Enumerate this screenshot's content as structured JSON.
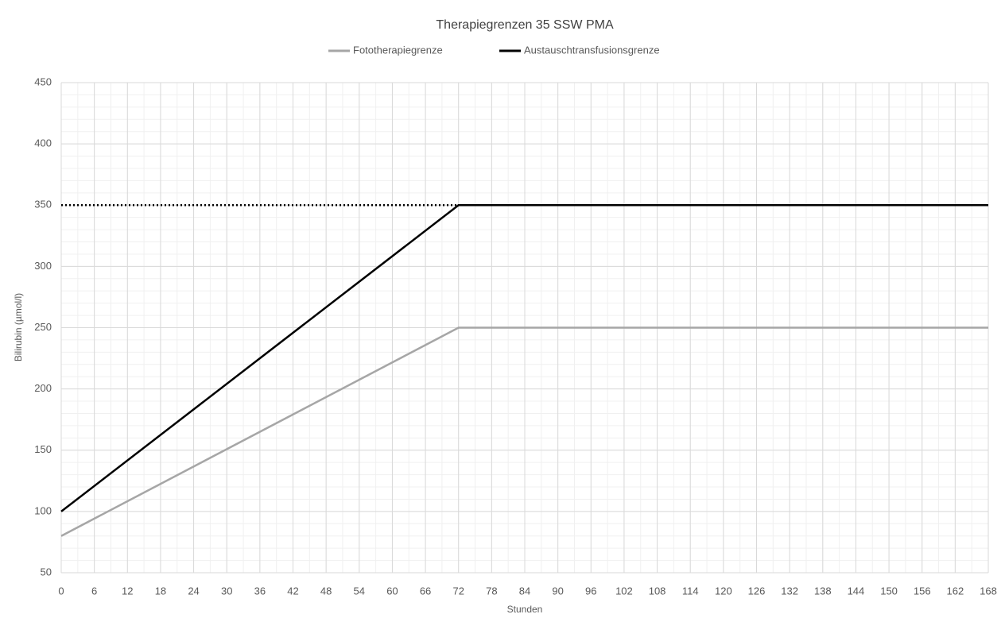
{
  "chart_data": {
    "type": "line",
    "title": "Therapiegrenzen 35 SSW PMA",
    "x_label": "Stunden",
    "y_label": "Bilirubin (µmol/l)",
    "series": [
      {
        "name": "Fototherapiegrenze",
        "color": "#a6a6a6",
        "x": [
          0,
          72,
          168
        ],
        "values": [
          80,
          250,
          250
        ]
      },
      {
        "name": "Austauschtransfusionsgrenze",
        "color": "#000000",
        "x": [
          0,
          72,
          168
        ],
        "values": [
          100,
          350,
          350
        ]
      }
    ],
    "reference_lines": [
      {
        "y": 350,
        "x": [
          0,
          72
        ],
        "color": "#000000",
        "style": "dotted"
      }
    ],
    "xlim": [
      0,
      168
    ],
    "xticks": [
      0,
      6,
      12,
      18,
      24,
      30,
      36,
      42,
      48,
      54,
      60,
      66,
      72,
      78,
      84,
      90,
      96,
      102,
      108,
      114,
      120,
      126,
      132,
      138,
      144,
      150,
      156,
      162,
      168
    ],
    "ylim": [
      50,
      450
    ],
    "yticks": [
      50,
      100,
      150,
      200,
      250,
      300,
      350,
      400,
      450
    ],
    "grid": true,
    "minor_grid": {
      "xstep": 3,
      "ystep": 10
    },
    "legend": "top"
  }
}
